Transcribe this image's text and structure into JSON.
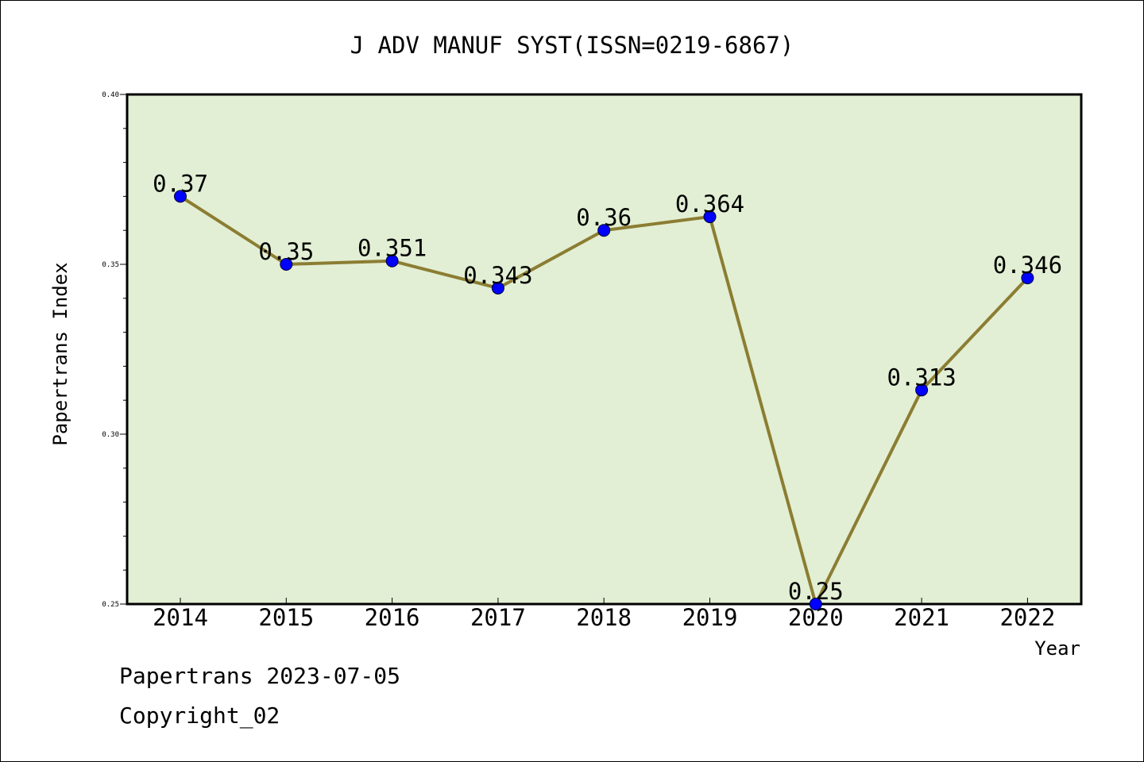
{
  "chart_data": {
    "type": "line",
    "title": "J ADV MANUF SYST(ISSN=0219-6867)",
    "xlabel": "Year",
    "ylabel": "Papertrans Index",
    "categories": [
      "2014",
      "2015",
      "2016",
      "2017",
      "2018",
      "2019",
      "2020",
      "2021",
      "2022"
    ],
    "series": [
      {
        "values": [
          0.37,
          0.35,
          0.351,
          0.343,
          0.36,
          0.364,
          0.25,
          0.313,
          0.346
        ],
        "data_labels": [
          "0.37",
          "0.35",
          "0.351",
          "0.343",
          "0.36",
          "0.364",
          "0.25",
          "0.313",
          "0.346"
        ],
        "line_color": "#8b7d32",
        "marker_color": "#0000ff"
      }
    ],
    "ylim": [
      0.25,
      0.4
    ],
    "yticks": [
      0.25,
      0.3,
      0.35,
      0.4
    ],
    "ytick_labels": [
      "0.25",
      "0.30",
      "0.35",
      "0.40"
    ],
    "plot_background": "#e2efd4",
    "grid": false
  },
  "footer": {
    "source": "Papertrans 2023-07-05",
    "copyright": "Copyright_02"
  }
}
